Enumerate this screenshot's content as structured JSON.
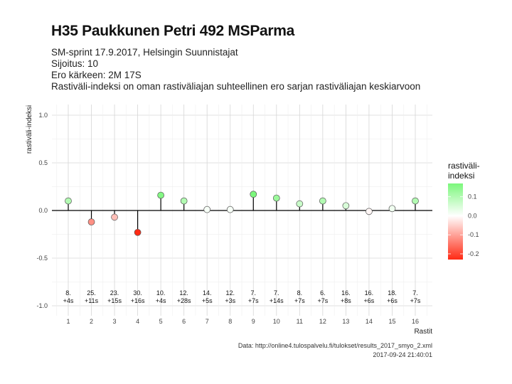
{
  "header": {
    "title": "H35 Paukkunen Petri 492 MSParma",
    "subtitle_lines": [
      "SM-sprint 17.9.2017, Helsingin Suunnistajat",
      "Sijoitus: 10",
      "Ero kärkeen: 2M 17S",
      "Rastiväli-indeksi on oman rastiväliajan suhteellinen ero sarjan rastiväliajan keskiarvoon"
    ]
  },
  "caption": {
    "source": "Data: http://online4.tulospalvelu.fi/tulokset/results_2017_smyo_2.xml",
    "timestamp": "2017-09-24 21:40:01"
  },
  "chart_data": {
    "type": "scatter",
    "title": "H35 Paukkunen Petri 492 MSParma",
    "xlabel": "Rastit",
    "ylabel": "rastiväli-indeksi",
    "ylim": [
      -1.0,
      1.0
    ],
    "yticks": [
      -1.0,
      -0.5,
      0.0,
      0.5,
      1.0
    ],
    "ytick_labels": [
      "-1.0",
      "-0.5",
      "0.0",
      "0.5",
      "1.0"
    ],
    "grid": true,
    "x_categories": [
      "1",
      "2",
      "3",
      "4",
      "5",
      "6",
      "7",
      "8",
      "9",
      "10",
      "11",
      "12",
      "13",
      "14",
      "15",
      "16"
    ],
    "values": [
      0.1,
      -0.12,
      -0.07,
      -0.23,
      0.16,
      0.1,
      0.01,
      0.01,
      0.17,
      0.13,
      0.07,
      0.1,
      0.05,
      -0.01,
      0.02,
      0.1
    ],
    "split_labels": [
      [
        "8.",
        "+4s"
      ],
      [
        "25.",
        "+11s"
      ],
      [
        "23.",
        "+15s"
      ],
      [
        "30.",
        "+16s"
      ],
      [
        "10.",
        "+4s"
      ],
      [
        "12.",
        "+28s"
      ],
      [
        "14.",
        "+5s"
      ],
      [
        "12.",
        "+3s"
      ],
      [
        "7.",
        "+7s"
      ],
      [
        "7.",
        "+14s"
      ],
      [
        "8.",
        "+7s"
      ],
      [
        "6.",
        "+7s"
      ],
      [
        "16.",
        "+8s"
      ],
      [
        "16.",
        "+6s"
      ],
      [
        "18.",
        "+6s"
      ],
      [
        "7.",
        "+7s"
      ]
    ],
    "legend": {
      "title_lines": [
        "rastiväli-",
        "indeksi"
      ],
      "placement": "right",
      "ticks": [
        0.1,
        0.0,
        -0.1,
        -0.2
      ],
      "tick_labels": [
        "0.1",
        "0.0",
        "-0.1",
        "-0.2"
      ],
      "range": [
        -0.23,
        0.17
      ]
    },
    "colors": {
      "high": "#7cf77c",
      "mid": "#ffffff",
      "low": "#ff2a14"
    }
  }
}
